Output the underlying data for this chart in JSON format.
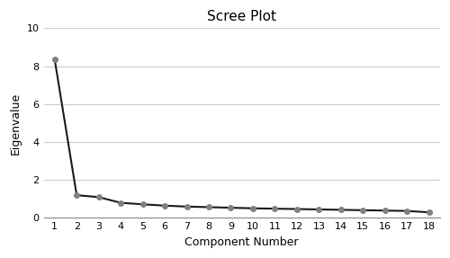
{
  "title": "Scree Plot",
  "xlabel": "Component Number",
  "ylabel": "Eigenvalue",
  "x": [
    1,
    2,
    3,
    4,
    5,
    6,
    7,
    8,
    9,
    10,
    11,
    12,
    13,
    14,
    15,
    16,
    17,
    18
  ],
  "y": [
    8.35,
    1.2,
    1.1,
    0.8,
    0.72,
    0.65,
    0.6,
    0.57,
    0.54,
    0.51,
    0.49,
    0.47,
    0.45,
    0.43,
    0.41,
    0.39,
    0.37,
    0.3
  ],
  "ylim": [
    0,
    10
  ],
  "yticks": [
    0,
    2,
    4,
    6,
    8,
    10
  ],
  "xticks": [
    1,
    2,
    3,
    4,
    5,
    6,
    7,
    8,
    9,
    10,
    11,
    12,
    13,
    14,
    15,
    16,
    17,
    18
  ],
  "line_color": "#1a1a1a",
  "marker_color": "#808080",
  "marker": "o",
  "marker_size": 4,
  "line_width": 1.5,
  "grid_color": "#cccccc",
  "bg_color": "#ffffff",
  "title_fontsize": 11,
  "label_fontsize": 9,
  "tick_fontsize": 8
}
